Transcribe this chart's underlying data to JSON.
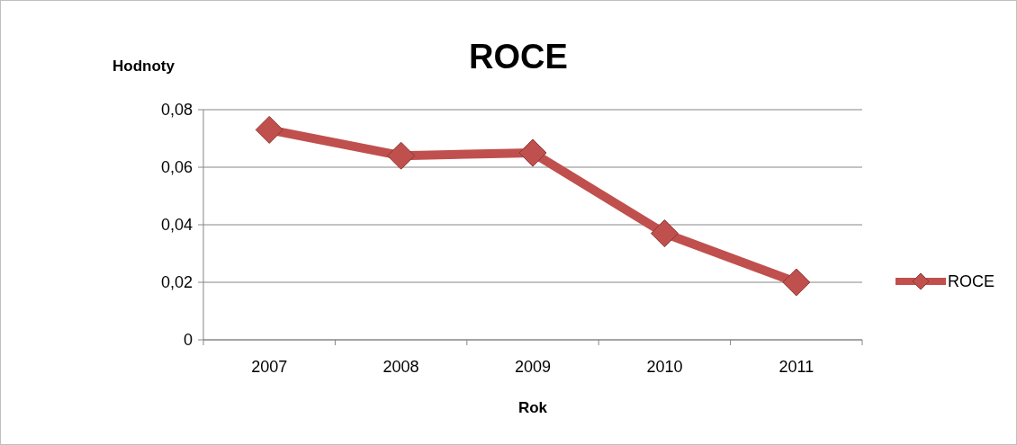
{
  "chart_data": {
    "type": "line",
    "title": "ROCE",
    "xlabel": "Rok",
    "ylabel": "Hodnoty",
    "categories": [
      "2007",
      "2008",
      "2009",
      "2010",
      "2011"
    ],
    "series": [
      {
        "name": "ROCE",
        "color": "#c0504d",
        "values": [
          0.073,
          0.064,
          0.065,
          0.037,
          0.02
        ]
      }
    ],
    "ylim": [
      0,
      0.08
    ],
    "yticks": [
      0,
      {
        "value": 0.02,
        "label": "0,02"
      },
      {
        "value": 0.04,
        "label": "0,04"
      },
      {
        "value": 0.06,
        "label": "0,06"
      },
      {
        "value": 0.08,
        "label": "0,08"
      }
    ],
    "grid": "y",
    "legend": "right",
    "marker": "diamond",
    "line_style": "solid"
  }
}
